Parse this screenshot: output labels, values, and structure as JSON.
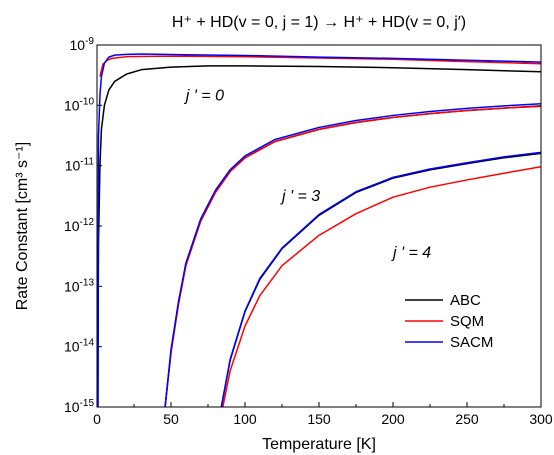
{
  "chart_data": {
    "type": "line",
    "title": "H⁺ + HD(v = 0, j = 1) → H⁺ + HD(v = 0, j′)",
    "xlabel": "Temperature [K]",
    "ylabel": "Rate Constant [cm³ s⁻¹]",
    "xlim": [
      0,
      300
    ],
    "ylim": [
      1e-15,
      1e-09
    ],
    "yscale": "log",
    "x_ticks": [
      0,
      50,
      100,
      150,
      200,
      250,
      300
    ],
    "y_tick_exponents": [
      -15,
      -14,
      -13,
      -12,
      -11,
      -10,
      -9
    ],
    "legend_position": "lower-right",
    "series_styles": [
      {
        "name": "ABC",
        "color": "#000000"
      },
      {
        "name": "SQM",
        "color": "#ff0000"
      },
      {
        "name": "SACM",
        "color": "#0000ff"
      }
    ],
    "annotations": [
      {
        "text": "j ' = 0",
        "x": 60,
        "y": 1.2e-10
      },
      {
        "text": "j ' = 3",
        "x": 125,
        "y": 2.6e-12
      },
      {
        "text": "j ' = 4",
        "x": 200,
        "y": 3e-13
      }
    ],
    "curves": [
      {
        "transition": "j ' = 0",
        "series": "ABC",
        "points": [
          [
            0.5,
            1e-15
          ],
          [
            1,
            5e-13
          ],
          [
            2,
            1e-11
          ],
          [
            3,
            4e-11
          ],
          [
            5,
            1e-10
          ],
          [
            8,
            1.8e-10
          ],
          [
            12,
            2.5e-10
          ],
          [
            20,
            3.3e-10
          ],
          [
            30,
            3.9e-10
          ],
          [
            50,
            4.3e-10
          ],
          [
            75,
            4.5e-10
          ],
          [
            100,
            4.5e-10
          ],
          [
            150,
            4.4e-10
          ],
          [
            200,
            4.2e-10
          ],
          [
            250,
            3.9e-10
          ],
          [
            300,
            3.6e-10
          ]
        ]
      },
      {
        "transition": "j ' = 0",
        "series": "SQM",
        "points": [
          [
            2,
            3e-10
          ],
          [
            4,
            4.8e-10
          ],
          [
            7,
            5.6e-10
          ],
          [
            10,
            6e-10
          ],
          [
            20,
            6.4e-10
          ],
          [
            40,
            6.5e-10
          ],
          [
            60,
            6.5e-10
          ],
          [
            100,
            6.4e-10
          ],
          [
            150,
            6.1e-10
          ],
          [
            200,
            5.8e-10
          ],
          [
            250,
            5.3e-10
          ],
          [
            300,
            4.9e-10
          ]
        ]
      },
      {
        "transition": "j ' = 0",
        "series": "SACM",
        "points": [
          [
            0.7,
            1e-15
          ],
          [
            1,
            3e-11
          ],
          [
            2,
            1.5e-10
          ],
          [
            3,
            3e-10
          ],
          [
            5,
            5e-10
          ],
          [
            8,
            6.3e-10
          ],
          [
            12,
            6.8e-10
          ],
          [
            20,
            7e-10
          ],
          [
            30,
            7.1e-10
          ],
          [
            60,
            6.9e-10
          ],
          [
            100,
            6.7e-10
          ],
          [
            150,
            6.3e-10
          ],
          [
            200,
            6e-10
          ],
          [
            250,
            5.6e-10
          ],
          [
            300,
            5.2e-10
          ]
        ]
      },
      {
        "transition": "j ' = 3",
        "series": "ABC",
        "points": [
          [
            46,
            1e-15
          ],
          [
            50,
            8e-15
          ],
          [
            55,
            5e-14
          ],
          [
            60,
            2.2e-13
          ],
          [
            70,
            1.2e-12
          ],
          [
            80,
            3.6e-12
          ],
          [
            90,
            8e-12
          ],
          [
            100,
            1.35e-11
          ],
          [
            120,
            2.5e-11
          ],
          [
            150,
            4e-11
          ],
          [
            175,
            5.2e-11
          ],
          [
            200,
            6.3e-11
          ],
          [
            225,
            7.3e-11
          ],
          [
            250,
            8.2e-11
          ],
          [
            275,
            9e-11
          ],
          [
            300,
            9.8e-11
          ]
        ]
      },
      {
        "transition": "j ' = 3",
        "series": "SQM",
        "points": [
          [
            46,
            1e-15
          ],
          [
            50,
            8e-15
          ],
          [
            55,
            5e-14
          ],
          [
            60,
            2.2e-13
          ],
          [
            70,
            1.2e-12
          ],
          [
            80,
            3.6e-12
          ],
          [
            90,
            8e-12
          ],
          [
            100,
            1.35e-11
          ],
          [
            120,
            2.5e-11
          ],
          [
            150,
            4e-11
          ],
          [
            175,
            5.2e-11
          ],
          [
            200,
            6.3e-11
          ],
          [
            225,
            7.3e-11
          ],
          [
            250,
            8.2e-11
          ],
          [
            275,
            9e-11
          ],
          [
            300,
            9.6e-11
          ]
        ]
      },
      {
        "transition": "j ' = 3",
        "series": "SACM",
        "points": [
          [
            46,
            1e-15
          ],
          [
            50,
            9e-15
          ],
          [
            55,
            5.5e-14
          ],
          [
            60,
            2.4e-13
          ],
          [
            70,
            1.3e-12
          ],
          [
            80,
            3.9e-12
          ],
          [
            90,
            8.6e-12
          ],
          [
            100,
            1.45e-11
          ],
          [
            120,
            2.7e-11
          ],
          [
            150,
            4.3e-11
          ],
          [
            175,
            5.6e-11
          ],
          [
            200,
            6.8e-11
          ],
          [
            225,
            7.9e-11
          ],
          [
            250,
            8.9e-11
          ],
          [
            275,
            9.8e-11
          ],
          [
            300,
            1.06e-10
          ]
        ]
      },
      {
        "transition": "j ' = 4",
        "series": "ABC",
        "points": [
          [
            84,
            1e-15
          ],
          [
            90,
            6e-15
          ],
          [
            100,
            3.8e-14
          ],
          [
            110,
            1.3e-13
          ],
          [
            125,
            4.2e-13
          ],
          [
            150,
            1.5e-12
          ],
          [
            175,
            3.6e-12
          ],
          [
            200,
            6.2e-12
          ],
          [
            225,
            8.5e-12
          ],
          [
            250,
            1.08e-11
          ],
          [
            275,
            1.35e-11
          ],
          [
            300,
            1.6e-11
          ]
        ]
      },
      {
        "transition": "j ' = 4",
        "series": "SQM",
        "points": [
          [
            85,
            1e-15
          ],
          [
            90,
            4e-15
          ],
          [
            100,
            2.2e-14
          ],
          [
            110,
            7e-14
          ],
          [
            125,
            2.2e-13
          ],
          [
            150,
            7e-13
          ],
          [
            175,
            1.6e-12
          ],
          [
            200,
            3e-12
          ],
          [
            225,
            4.4e-12
          ],
          [
            250,
            5.8e-12
          ],
          [
            275,
            7.5e-12
          ],
          [
            300,
            9.6e-12
          ]
        ]
      },
      {
        "transition": "j ' = 4",
        "series": "SACM",
        "points": [
          [
            84,
            1e-15
          ],
          [
            90,
            6.2e-15
          ],
          [
            100,
            3.9e-14
          ],
          [
            110,
            1.35e-13
          ],
          [
            125,
            4.3e-13
          ],
          [
            150,
            1.55e-12
          ],
          [
            175,
            3.7e-12
          ],
          [
            200,
            6.4e-12
          ],
          [
            225,
            8.8e-12
          ],
          [
            250,
            1.12e-11
          ],
          [
            275,
            1.4e-11
          ],
          [
            300,
            1.66e-11
          ]
        ]
      }
    ]
  }
}
